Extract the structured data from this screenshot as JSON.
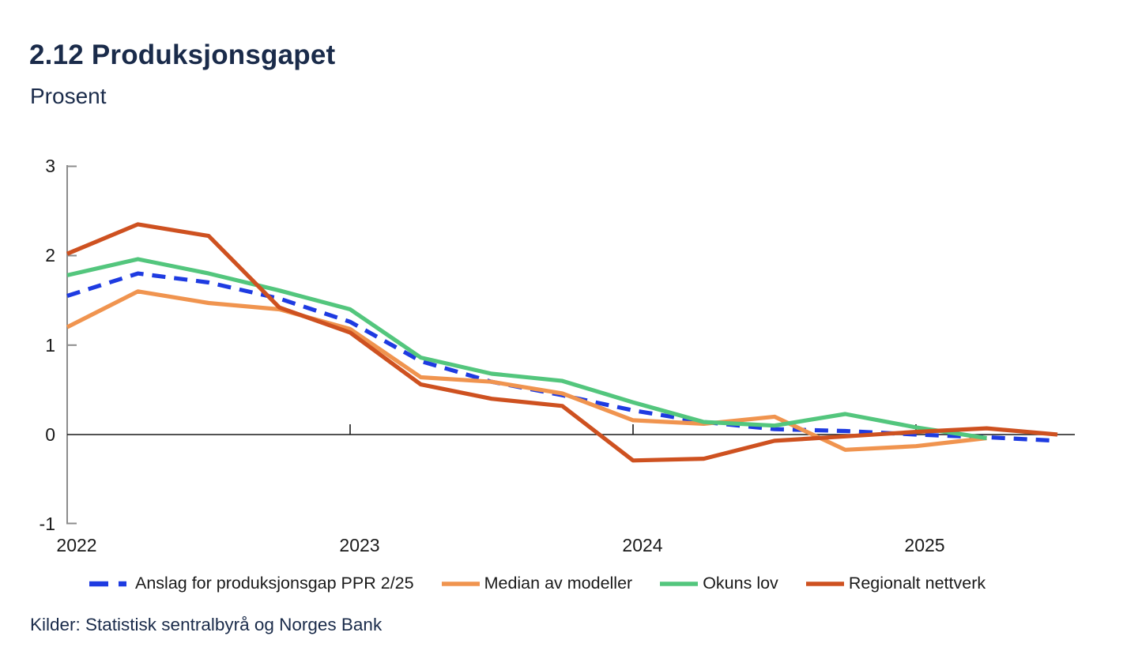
{
  "header": {
    "title": "2.12 Produksjonsgapet",
    "subtitle": "Prosent"
  },
  "chart_data": {
    "type": "line",
    "title": "2.12 Produksjonsgapet",
    "ylabel_unit": "Prosent",
    "x": [
      "2022K1",
      "2022K2",
      "2022K3",
      "2022K4",
      "2023K1",
      "2023K2",
      "2023K3",
      "2023K4",
      "2024K1",
      "2024K2",
      "2024K3",
      "2024K4",
      "2025K1",
      "2025K2",
      "2025K3"
    ],
    "x_tick_labels": [
      "2022",
      "2023",
      "2024",
      "2025"
    ],
    "y_tick_labels": [
      "3",
      "2",
      "1",
      "0",
      "-1"
    ],
    "ylim": [
      -1,
      3
    ],
    "grid": false,
    "zero_line": true,
    "legend_position": "bottom",
    "series": [
      {
        "id": "anslag",
        "name": "Anslag for produksjonsgap PPR 2/25",
        "color": "#1e3be1",
        "style": "dashed",
        "values": [
          1.55,
          1.8,
          1.7,
          1.52,
          1.26,
          0.82,
          0.59,
          0.44,
          0.27,
          0.14,
          0.06,
          0.04,
          0.0,
          -0.03,
          -0.07
        ]
      },
      {
        "id": "median",
        "name": "Median av modeller",
        "color": "#f0944f",
        "style": "solid",
        "values": [
          1.2,
          1.6,
          1.47,
          1.4,
          1.18,
          0.64,
          0.59,
          0.46,
          0.16,
          0.12,
          0.2,
          -0.17,
          -0.13,
          -0.04,
          null
        ]
      },
      {
        "id": "okun",
        "name": "Okuns lov",
        "color": "#53c67d",
        "style": "solid",
        "values": [
          1.78,
          1.96,
          1.8,
          1.61,
          1.4,
          0.86,
          0.68,
          0.6,
          0.36,
          0.14,
          0.1,
          0.23,
          0.08,
          -0.04,
          null
        ]
      },
      {
        "id": "regionalt",
        "name": "Regionalt nettverk",
        "color": "#ce5120",
        "style": "solid",
        "values": [
          2.02,
          2.35,
          2.22,
          1.42,
          1.14,
          0.56,
          0.4,
          0.32,
          -0.29,
          -0.27,
          -0.07,
          -0.02,
          0.03,
          0.07,
          0.0
        ]
      }
    ],
    "axis_color": "#8c8c8c",
    "zero_line_color": "#1a1a1a"
  },
  "footer": {
    "source": "Kilder: Statistisk sentralbyrå og Norges Bank"
  }
}
